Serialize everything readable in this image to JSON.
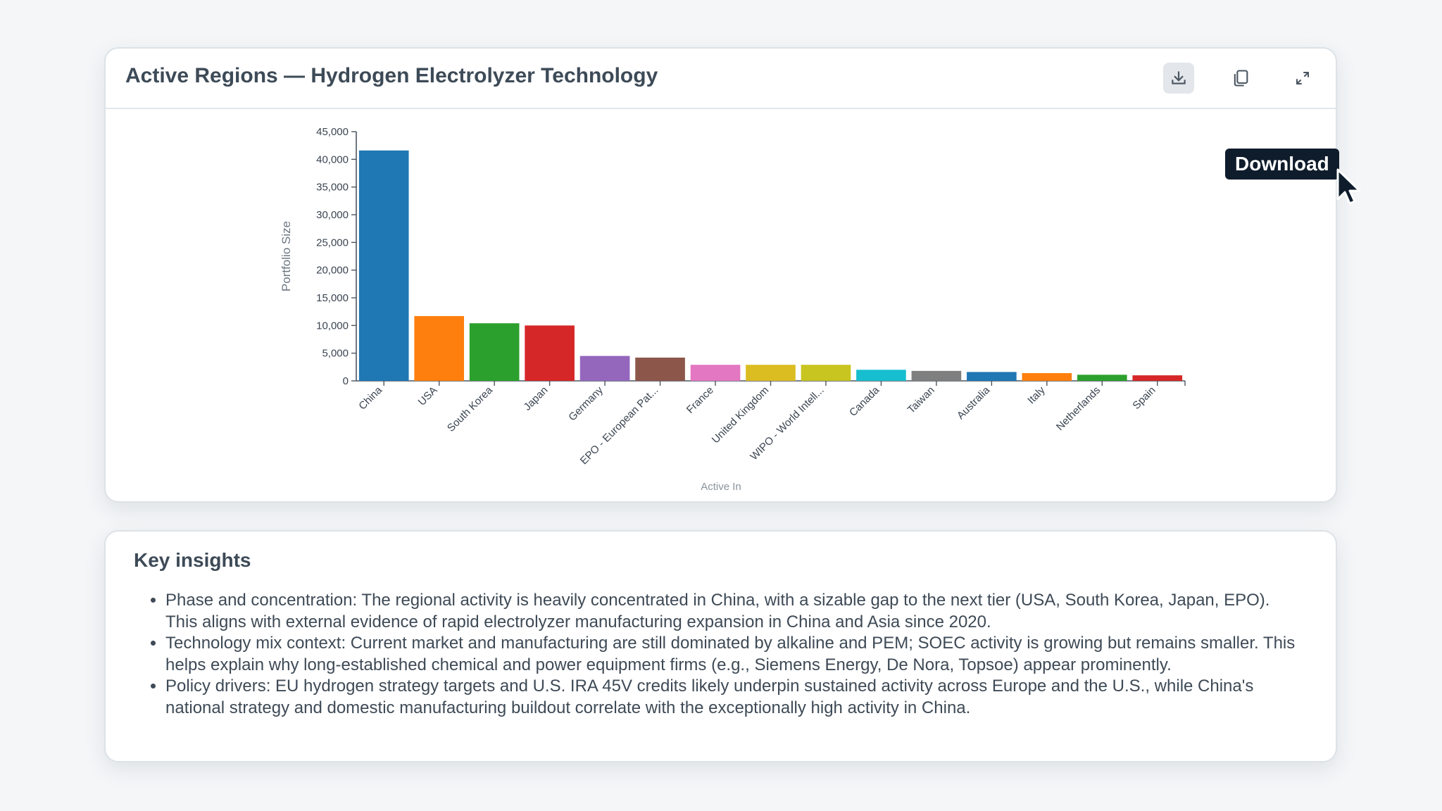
{
  "chart_card": {
    "title": "Active Regions — Hydrogen Electrolyzer Technology",
    "tools": [
      {
        "name": "download",
        "icon": "download-icon"
      },
      {
        "name": "copy",
        "icon": "copy-icon"
      },
      {
        "name": "expand",
        "icon": "expand-icon"
      }
    ],
    "tooltip": "Download"
  },
  "chart_data": {
    "type": "bar",
    "title": "",
    "xlabel": "Active In",
    "ylabel": "Portfolio Size",
    "ylim": [
      0,
      45000
    ],
    "yticks": [
      "0",
      "5,000",
      "10,000",
      "15,000",
      "20,000",
      "25,000",
      "30,000",
      "35,000",
      "40,000",
      "45,000"
    ],
    "grid": false,
    "categories": [
      "China",
      "USA",
      "South Korea",
      "Japan",
      "Germany",
      "EPO - European Pat...",
      "France",
      "United Kingdom",
      "WIPO - World Intell...",
      "Canada",
      "Taiwan",
      "Australia",
      "Italy",
      "Netherlands",
      "Spain"
    ],
    "values": [
      41600,
      11700,
      10400,
      10000,
      4500,
      4200,
      2900,
      2900,
      2900,
      2000,
      1800,
      1600,
      1400,
      1100,
      1000
    ],
    "colors": [
      "#1f77b4",
      "#ff7f0e",
      "#2ca02c",
      "#d62728",
      "#9467bd",
      "#8c564b",
      "#e377c2",
      "#dbbd22",
      "#c8c420",
      "#17becf",
      "#7f7f7f",
      "#1f77b4",
      "#ff7f0e",
      "#2ca02c",
      "#d62728"
    ]
  },
  "insights": {
    "title": "Key insights",
    "items": [
      "Phase and concentration: The regional activity is heavily concentrated in China, with a sizable gap to the next tier (USA, South Korea, Japan, EPO). This aligns with external evidence of rapid electrolyzer manufacturing expansion in China and Asia since 2020.",
      "Technology mix context: Current market and manufacturing are still dominated by alkaline and PEM; SOEC activity is growing but remains smaller. This helps explain why long-established chemical and power equipment firms (e.g., Siemens Energy, De Nora, Topsoe) appear prominently.",
      "Policy drivers: EU hydrogen strategy targets and U.S. IRA 45V credits likely underpin sustained activity across Europe and the U.S., while China's national strategy and domestic manufacturing buildout correlate with the exceptionally high activity in China."
    ]
  }
}
